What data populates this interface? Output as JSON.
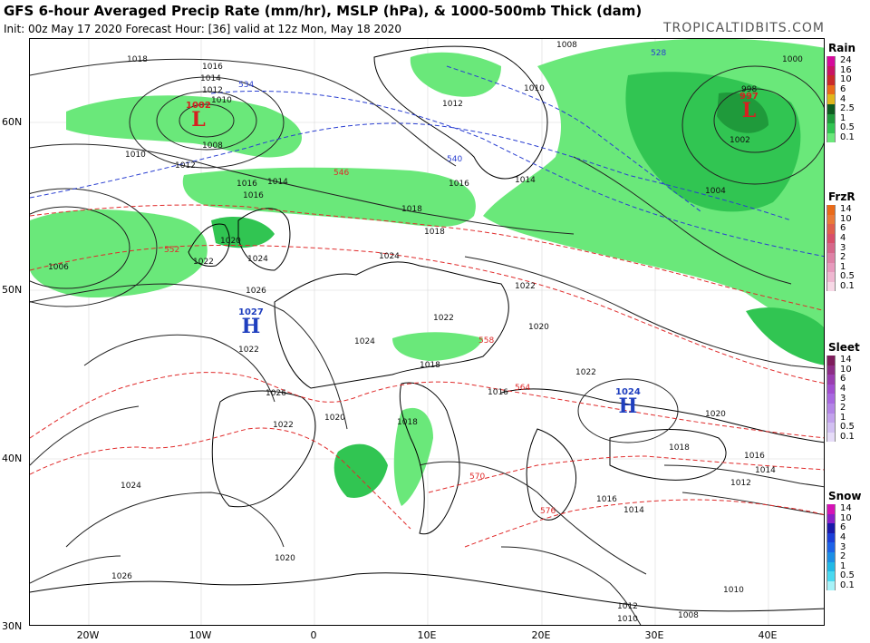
{
  "header": {
    "title": "GFS 6-hour Averaged Precip Rate (mm/hr), MSLP (hPa), & 1000-500mb Thick (dam)",
    "subtitle": "Init: 00z May 17 2020   Forecast Hour: [36]   valid at 12z Mon, May 18 2020",
    "credit": "TROPICALTIDBITS.COM"
  },
  "axes": {
    "lat_labels": [
      "60N",
      "50N",
      "40N",
      "30N"
    ],
    "lon_labels": [
      "20W",
      "10W",
      "0",
      "10E",
      "20E",
      "30E",
      "40E"
    ]
  },
  "pressure_centers": [
    {
      "value": "1002",
      "symbol": "L",
      "color": "#d62020"
    },
    {
      "value": "997",
      "symbol": "L",
      "color": "#d62020"
    },
    {
      "value": "1027",
      "symbol": "H",
      "color": "#1f3fbf"
    },
    {
      "value": "1024",
      "symbol": "H",
      "color": "#1f3fbf"
    }
  ],
  "isobar_labels": [
    "1018",
    "1016",
    "1014",
    "1012",
    "1010",
    "1008",
    "1010",
    "1012",
    "1016",
    "1014",
    "1016",
    "1018",
    "1020",
    "1022",
    "1024",
    "1026",
    "1006",
    "1024",
    "1022",
    "1022",
    "1020",
    "1018",
    "1016",
    "1026",
    "1024",
    "1022",
    "1020",
    "1018",
    "1016",
    "1014",
    "1012",
    "1010",
    "1008",
    "1004",
    "1000",
    "998",
    "1002",
    "1008",
    "1010",
    "1012",
    "1014",
    "1016",
    "1018",
    "1020",
    "1022",
    "1024",
    "1026",
    "1020",
    "1022",
    "1018",
    "1016",
    "1014",
    "1012",
    "1010"
  ],
  "thickness_labels": [
    "528",
    "534",
    "540",
    "546",
    "552",
    "558",
    "564",
    "570",
    "576"
  ],
  "legend": {
    "rain": {
      "title": "Rain",
      "labels": [
        "24",
        "16",
        "10",
        "6",
        "4",
        "2.5",
        "1",
        "0.5",
        "0.1"
      ],
      "colors": [
        "#d50a9b",
        "#c91463",
        "#c92a2a",
        "#e96b1a",
        "#e0b61d",
        "#0e5b20",
        "#1f9a3b",
        "#31c552",
        "#6ae87a"
      ]
    },
    "frzr": {
      "title": "FrzR",
      "labels": [
        "14",
        "10",
        "6",
        "4",
        "3",
        "2",
        "1",
        "0.5",
        "0.1"
      ],
      "colors": [
        "#e96b1a",
        "#ea7a38",
        "#e0604d",
        "#d84f6a",
        "#d6678a",
        "#de82a6",
        "#e79abd",
        "#efb7d1",
        "#f7d8e6"
      ]
    },
    "sleet": {
      "title": "Sleet",
      "labels": [
        "14",
        "10",
        "6",
        "4",
        "3",
        "2",
        "1",
        "0.5",
        "0.1"
      ],
      "colors": [
        "#7e1d5c",
        "#8d2d86",
        "#9a3db0",
        "#a24ed0",
        "#a868e0",
        "#b385e6",
        "#c2a2ec",
        "#d2c0f2",
        "#e6dcf8"
      ]
    },
    "snow": {
      "title": "Snow",
      "labels": [
        "14",
        "10",
        "6",
        "4",
        "3",
        "2",
        "1",
        "0.5",
        "0.1"
      ],
      "colors": [
        "#d513b6",
        "#8a1fc9",
        "#1a18a9",
        "#1b3ed8",
        "#1d63e8",
        "#1c8fe6",
        "#21b9e6",
        "#4ad9f0",
        "#a7f2f8"
      ]
    }
  }
}
